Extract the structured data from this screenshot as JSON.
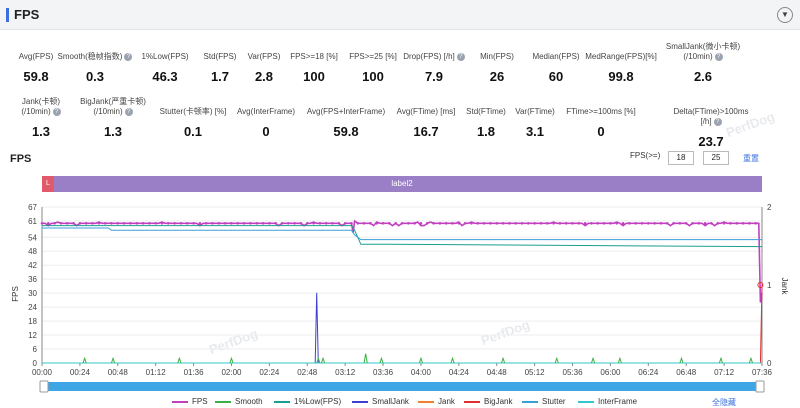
{
  "header": {
    "title": "FPS",
    "collapse_icon": "chevron-down-icon"
  },
  "metrics_row1": [
    {
      "label": "Avg(FPS)",
      "value": "59.8",
      "help": false
    },
    {
      "label": "Smooth(稳帧指数)",
      "value": "0.3",
      "help": true
    },
    {
      "label": "1%Low(FPS)",
      "value": "46.3",
      "help": false
    },
    {
      "label": "Std(FPS)",
      "value": "1.7",
      "help": false
    },
    {
      "label": "Var(FPS)",
      "value": "2.8",
      "help": false
    },
    {
      "label": "FPS>=18 [%]",
      "value": "100",
      "help": false
    },
    {
      "label": "FPS>=25 [%]",
      "value": "100",
      "help": false
    },
    {
      "label": "Drop(FPS) [/h]",
      "value": "7.9",
      "help": true
    },
    {
      "label": "Min(FPS)",
      "value": "26",
      "help": false
    },
    {
      "label": "Median(FPS)",
      "value": "60",
      "help": false
    },
    {
      "label": "MedRange(FPS)[%]",
      "value": "99.8",
      "help": false
    },
    {
      "label": "SmallJank(微小卡顿)\n(/10min)",
      "value": "2.6",
      "help": true
    }
  ],
  "metrics_row2": [
    {
      "label": "Jank(卡顿)\n(/10min)",
      "value": "1.3",
      "help": true
    },
    {
      "label": "BigJank(严重卡顿)\n(/10min)",
      "value": "1.3",
      "help": true
    },
    {
      "label": "Stutter(卡顿率) [%]",
      "value": "0.1",
      "help": false
    },
    {
      "label": "Avg(InterFrame)",
      "value": "0",
      "help": false
    },
    {
      "label": "Avg(FPS+InterFrame)",
      "value": "59.8",
      "help": false
    },
    {
      "label": "Avg(FTime) [ms]",
      "value": "16.7",
      "help": false
    },
    {
      "label": "Std(FTime)",
      "value": "1.8",
      "help": false
    },
    {
      "label": "Var(FTime)",
      "value": "3.1",
      "help": false
    },
    {
      "label": "FTime>=100ms [%]",
      "value": "0",
      "help": false
    },
    {
      "label": "Delta(FTime)>100ms [/h]",
      "value": "23.7",
      "help": true
    }
  ],
  "chart_section": {
    "title": "FPS",
    "fps_filter_label": "FPS(>=)",
    "fps_threshold_1": "18",
    "fps_threshold_2": "25",
    "reset_label": "重置",
    "label_bar": {
      "marker": "L",
      "name": "label2"
    },
    "watermark": "PerfDog",
    "hide_all_label": "全隐藏"
  },
  "chart_data": {
    "type": "line",
    "x_ticks": [
      "00:00",
      "00:24",
      "00:48",
      "01:12",
      "01:36",
      "02:00",
      "02:24",
      "02:48",
      "03:12",
      "03:36",
      "04:00",
      "04:24",
      "04:48",
      "05:12",
      "05:36",
      "06:00",
      "06:24",
      "06:48",
      "07:12",
      "07:36"
    ],
    "xrange_seconds": [
      0,
      456
    ],
    "ylabel": "FPS",
    "ylim": [
      0,
      67
    ],
    "y_ticks": [
      0,
      6,
      12,
      18,
      24,
      30,
      36,
      42,
      48,
      54,
      61,
      67
    ],
    "y2label": "Jank",
    "y2lim": [
      0,
      2
    ],
    "y2_ticks": [
      0,
      1,
      2
    ],
    "grid": true,
    "legend_position": "bottom",
    "series": [
      {
        "name": "FPS",
        "color": "#c040c0",
        "axis": "left",
        "description_points": [
          [
            0,
            60
          ],
          [
            196,
            60
          ],
          [
            197,
            56
          ],
          [
            198,
            61
          ],
          [
            200,
            60
          ],
          [
            454,
            60
          ],
          [
            455,
            26
          ],
          [
            456,
            30
          ]
        ]
      },
      {
        "name": "Smooth",
        "color": "#3cb043",
        "axis": "left",
        "description_points": [
          [
            0,
            0
          ],
          [
            456,
            0
          ]
        ]
      },
      {
        "name": "1%Low(FPS)",
        "color": "#1a9e8f",
        "axis": "left",
        "description_points": [
          [
            0,
            59
          ],
          [
            196,
            59
          ],
          [
            198,
            57
          ],
          [
            202,
            51
          ],
          [
            220,
            51
          ],
          [
            456,
            50
          ]
        ]
      },
      {
        "name": "SmallJank",
        "color": "#4040d0",
        "axis": "right",
        "description_points": [
          [
            0,
            0
          ],
          [
            173,
            0
          ],
          [
            174,
            0.9
          ],
          [
            175,
            0
          ],
          [
            456,
            0
          ]
        ]
      },
      {
        "name": "Jank",
        "color": "#f08030",
        "axis": "right",
        "description_points": [
          [
            0,
            0
          ],
          [
            456,
            0
          ]
        ]
      },
      {
        "name": "BigJank",
        "color": "#e03030",
        "axis": "right",
        "description_points": [
          [
            0,
            0
          ],
          [
            455,
            0
          ],
          [
            456,
            1
          ]
        ]
      },
      {
        "name": "Stutter",
        "color": "#3a9fd8",
        "axis": "left",
        "description_points": [
          [
            0,
            58
          ],
          [
            42,
            58
          ],
          [
            44,
            57
          ],
          [
            196,
            57
          ],
          [
            198,
            55
          ],
          [
            202,
            53
          ],
          [
            456,
            53
          ]
        ]
      },
      {
        "name": "InterFrame",
        "color": "#30c8c8",
        "axis": "left",
        "description_points": [
          [
            0,
            0
          ],
          [
            456,
            0
          ]
        ]
      }
    ]
  }
}
